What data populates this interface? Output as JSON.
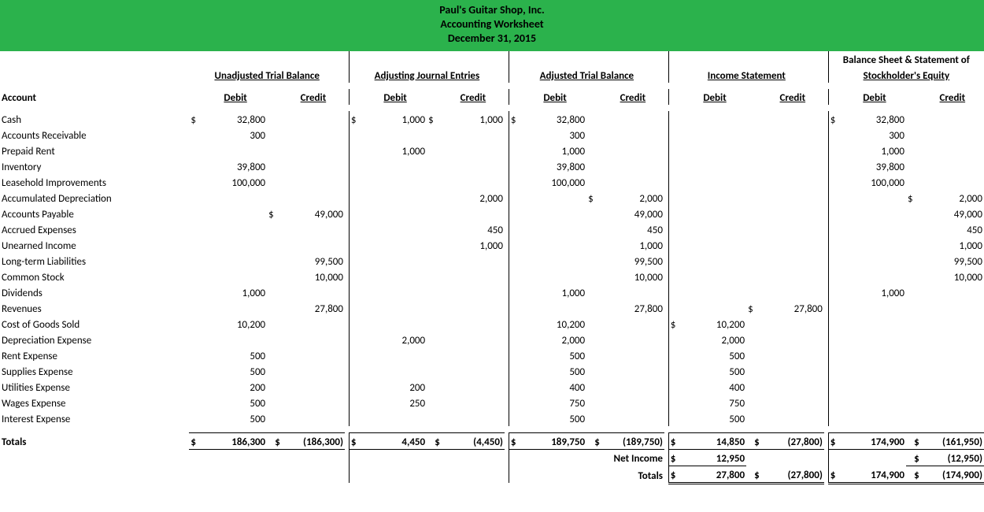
{
  "header": {
    "line1": "Paul's Guitar Shop, Inc.",
    "line2": "Accounting Worksheet",
    "line3": "December 31, 2015",
    "bg_color": "#2bb24c"
  },
  "sections": {
    "s1": "Unadjusted Trial Balance",
    "s2": "Adjusting Journal Entries",
    "s3": "Adjusted Trial Balance",
    "s4": "Income Statement",
    "s5a": "Balance Sheet & Statement of",
    "s5b": "Stockholder's Equity"
  },
  "col_labels": {
    "account": "Account",
    "debit": "Debit",
    "credit": "Credit"
  },
  "accounts": [
    "Cash",
    "Accounts Receivable",
    "Prepaid Rent",
    "Inventory",
    "Leasehold Improvements",
    "Accumulated Depreciation",
    "Accounts Payable",
    "Accrued Expenses",
    "Unearned Income",
    "Long-term Liabilities",
    "Common Stock",
    "Dividends",
    "Revenues",
    "Cost of Goods Sold",
    "Depreciation Expense",
    "Rent Expense",
    "Supplies Expense",
    "Utilities Expense",
    "Wages Expense",
    "Interest Expense"
  ],
  "rows": [
    {
      "s1d": "32,800",
      "s1d_s": "$",
      "s2d": "1,000",
      "s2d_s": "$",
      "s2c": "1,000",
      "s2c_s": "$",
      "s3d": "32,800",
      "s3d_s": "$",
      "s5d": "32,800",
      "s5d_s": "$"
    },
    {
      "s1d": "300",
      "s3d": "300",
      "s5d": "300"
    },
    {
      "s2d": "1,000",
      "s3d": "1,000",
      "s5d": "1,000"
    },
    {
      "s1d": "39,800",
      "s3d": "39,800",
      "s5d": "39,800"
    },
    {
      "s1d": "100,000",
      "s3d": "100,000",
      "s5d": "100,000"
    },
    {
      "s2c": "2,000",
      "s3c": "2,000",
      "s3c_s": "$",
      "s5c": "2,000",
      "s5c_s": "$"
    },
    {
      "s1c": "49,000",
      "s1c_s": "$",
      "s3c": "49,000",
      "s5c": "49,000"
    },
    {
      "s2c": "450",
      "s3c": "450",
      "s5c": "450"
    },
    {
      "s2c": "1,000",
      "s3c": "1,000",
      "s5c": "1,000"
    },
    {
      "s1c": "99,500",
      "s3c": "99,500",
      "s5c": "99,500"
    },
    {
      "s1c": "10,000",
      "s3c": "10,000",
      "s5c": "10,000"
    },
    {
      "s1d": "1,000",
      "s3d": "1,000",
      "s5d": "1,000"
    },
    {
      "s1c": "27,800",
      "s3c": "27,800",
      "s4c": "27,800",
      "s4c_s": "$"
    },
    {
      "s1d": "10,200",
      "s3d": "10,200",
      "s4d": "10,200",
      "s4d_s": "$"
    },
    {
      "s2d": "2,000",
      "s3d": "2,000",
      "s4d": "2,000"
    },
    {
      "s1d": "500",
      "s3d": "500",
      "s4d": "500"
    },
    {
      "s1d": "500",
      "s3d": "500",
      "s4d": "500"
    },
    {
      "s1d": "200",
      "s2d": "200",
      "s3d": "400",
      "s4d": "400"
    },
    {
      "s1d": "500",
      "s2d": "250",
      "s3d": "750",
      "s4d": "750"
    },
    {
      "s1d": "500",
      "s3d": "500",
      "s4d": "500"
    }
  ],
  "totals": {
    "label": "Totals",
    "s1d": "186,300",
    "s1c": "(186,300)",
    "s2d": "4,450",
    "s2c": "(4,450)",
    "s3d": "189,750",
    "s3c": "(189,750)",
    "s4d": "14,850",
    "s4c": "(27,800)",
    "s5d": "174,900",
    "s5c": "(161,950)"
  },
  "net_income": {
    "label": "Net Income",
    "s4d": "12,950",
    "s5c": "(12,950)"
  },
  "final_totals": {
    "label": "Totals",
    "s4d": "27,800",
    "s4c": "(27,800)",
    "s5d": "174,900",
    "s5c": "(174,900)"
  },
  "style": {
    "font_family": "Calibri, Arial, sans-serif",
    "font_size_pt": 10,
    "header_font_size_pt": 11,
    "text_color": "#000000",
    "background_color": "#ffffff",
    "border_color": "#000000"
  }
}
